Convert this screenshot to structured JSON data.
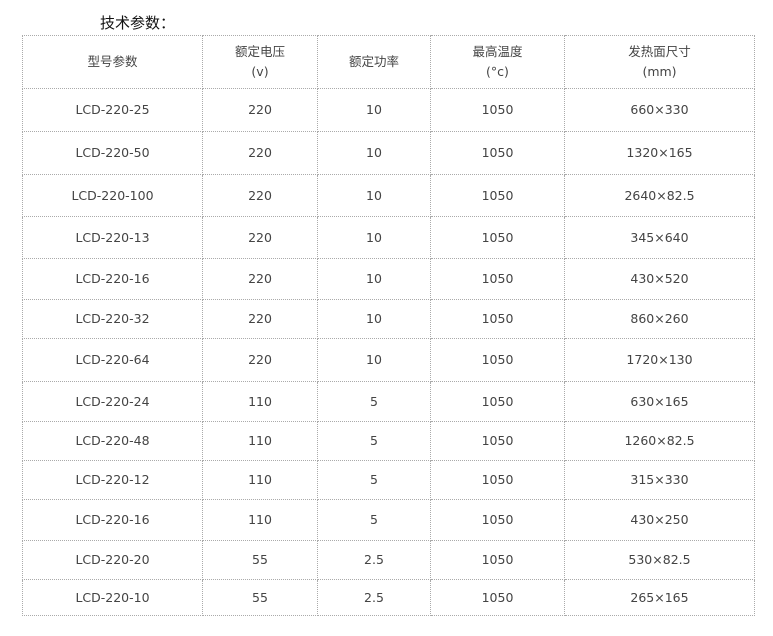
{
  "title": "技术参数：",
  "headers": [
    [
      "型号参数",
      ""
    ],
    [
      "额定电压",
      "(v)"
    ],
    [
      "额定功率",
      ""
    ],
    [
      "最高温度",
      "(°c)"
    ],
    [
      "发热面尺寸",
      "(mm)"
    ]
  ],
  "rows": [
    [
      "LCD-220-25",
      "220",
      "10",
      "1050",
      "660×330"
    ],
    [
      "LCD-220-50",
      "220",
      "10",
      "1050",
      "1320×165"
    ],
    [
      "LCD-220-100",
      "220",
      "10",
      "1050",
      "2640×82.5"
    ],
    [
      "LCD-220-13",
      "220",
      "10",
      "1050",
      "345×640"
    ],
    [
      "LCD-220-16",
      "220",
      "10",
      "1050",
      "430×520"
    ],
    [
      "LCD-220-32",
      "220",
      "10",
      "1050",
      "860×260"
    ],
    [
      "LCD-220-64",
      "220",
      "10",
      "1050",
      "1720×130"
    ],
    [
      "LCD-220-24",
      "110",
      "5",
      "1050",
      "630×165"
    ],
    [
      "LCD-220-48",
      "110",
      "5",
      "1050",
      "1260×82.5"
    ],
    [
      "LCD-220-12",
      "110",
      "5",
      "1050",
      "315×330"
    ],
    [
      "LCD-220-16",
      "110",
      "5",
      "1050",
      "430×250"
    ],
    [
      "LCD-220-20",
      "55",
      "2.5",
      "1050",
      "530×82.5"
    ],
    [
      "LCD-220-10",
      "55",
      "2.5",
      "1050",
      "265×165"
    ]
  ]
}
